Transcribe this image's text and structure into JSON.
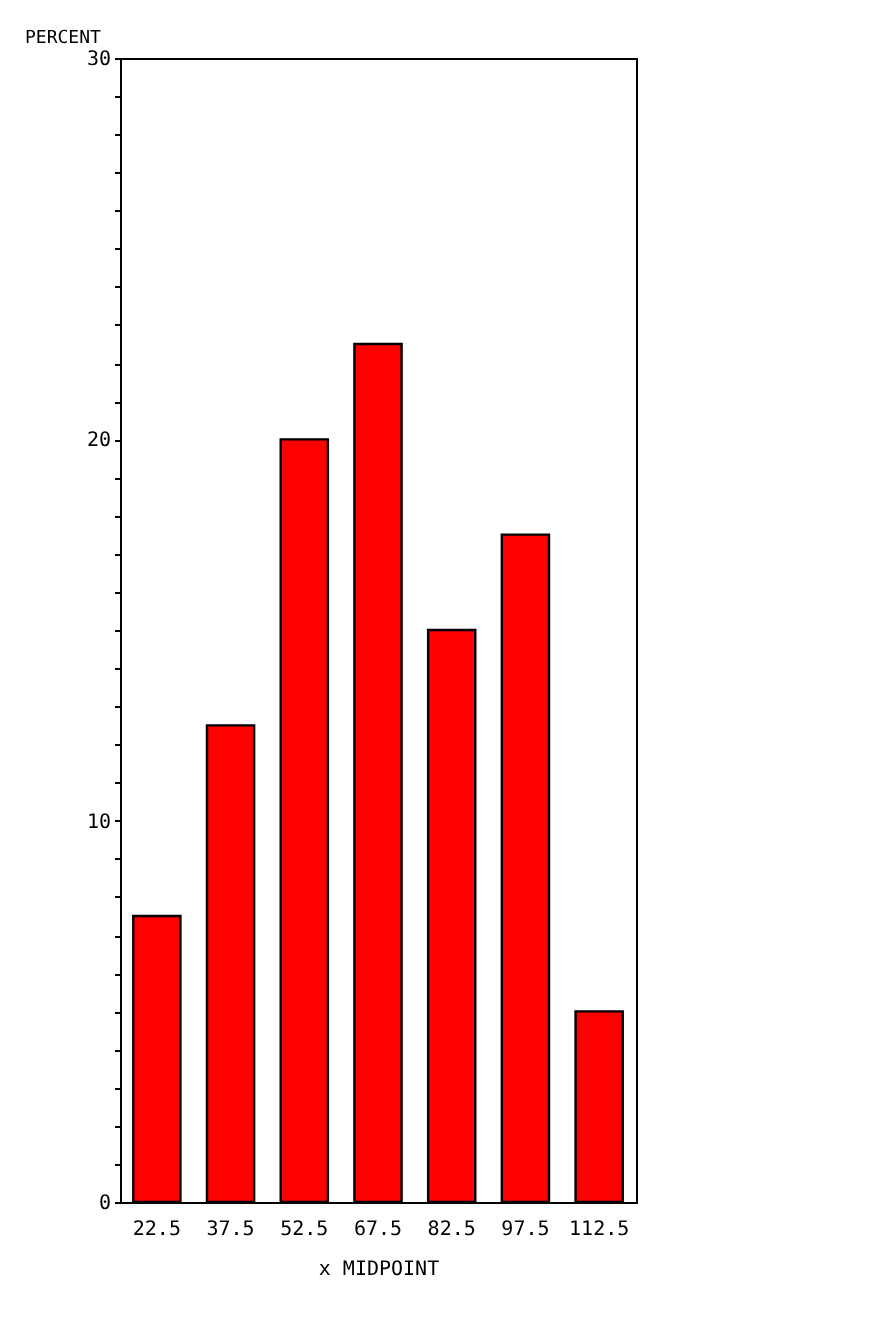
{
  "chart_data": {
    "type": "bar",
    "xlabel": "x MIDPOINT",
    "ylabel": "PERCENT",
    "categories": [
      "22.5",
      "37.5",
      "52.5",
      "67.5",
      "82.5",
      "97.5",
      "112.5"
    ],
    "values": [
      7.5,
      12.5,
      20,
      22.5,
      15,
      17.5,
      5
    ],
    "color": "#ff0000",
    "ylim": [
      0,
      30
    ],
    "yticks": [
      0,
      {
        "value": 1,
        "label": null
      },
      {
        "value": 2,
        "label": null
      },
      {
        "value": 3,
        "label": null
      },
      {
        "value": 4,
        "label": null
      },
      {
        "value": 5,
        "label": null
      },
      {
        "value": 6,
        "label": null
      },
      {
        "value": 7,
        "label": null
      },
      {
        "value": 8,
        "label": null
      },
      {
        "value": 9,
        "label": null
      },
      10,
      {
        "value": 11,
        "label": null
      },
      {
        "value": 12,
        "label": null
      },
      {
        "value": 13,
        "label": null
      },
      {
        "value": 14,
        "label": null
      },
      {
        "value": 15,
        "label": null
      },
      {
        "value": 16,
        "label": null
      },
      {
        "value": 17,
        "label": null
      },
      {
        "value": 18,
        "label": null
      },
      {
        "value": 19,
        "label": null
      },
      20,
      {
        "value": 21,
        "label": null
      },
      {
        "value": 22,
        "label": null
      },
      {
        "value": 23,
        "label": null
      },
      {
        "value": 24,
        "label": null
      },
      {
        "value": 25,
        "label": null
      },
      {
        "value": 26,
        "label": null
      },
      {
        "value": 27,
        "label": null
      },
      {
        "value": 28,
        "label": null
      },
      {
        "value": 29,
        "label": null
      },
      30
    ],
    "grid": false
  }
}
